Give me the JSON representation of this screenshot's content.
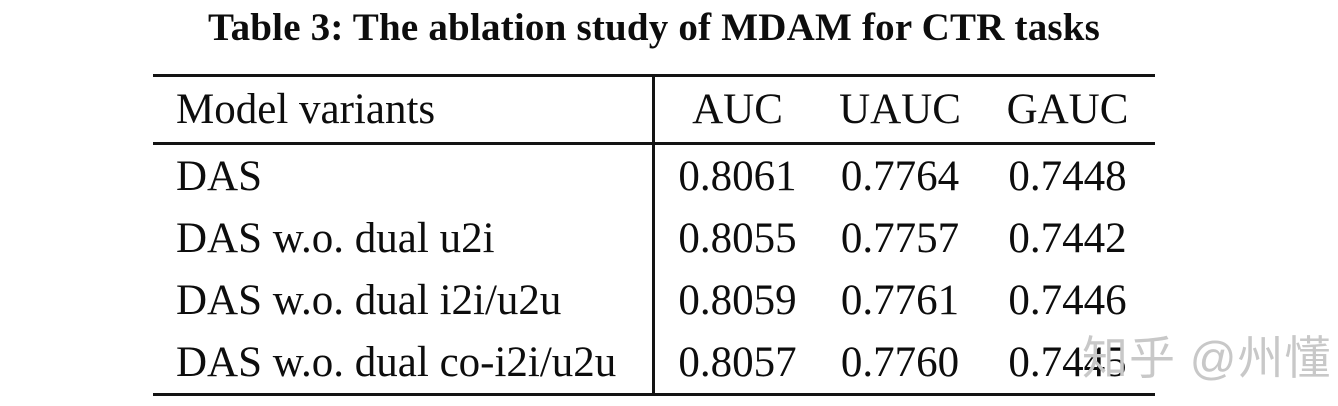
{
  "table": {
    "caption": "Table 3: The ablation study of MDAM for CTR tasks",
    "columns": [
      "Model variants",
      "AUC",
      "UAUC",
      "GAUC"
    ],
    "rows": [
      {
        "model": "DAS",
        "auc": "0.8061",
        "uauc": "0.7764",
        "gauc": "0.7448"
      },
      {
        "model": "DAS w.o. dual u2i",
        "auc": "0.8055",
        "uauc": "0.7757",
        "gauc": "0.7442"
      },
      {
        "model": "DAS w.o. dual i2i/u2u",
        "auc": "0.8059",
        "uauc": "0.7761",
        "gauc": "0.7446"
      },
      {
        "model": "DAS w.o. dual co-i2i/u2u",
        "auc": "0.8057",
        "uauc": "0.7760",
        "gauc": "0.7445"
      }
    ]
  },
  "watermark": {
    "text": "知乎 @州懂",
    "color": "#c8c8c8"
  },
  "colors": {
    "rule": "#131313",
    "text": "#0d0d0d",
    "background": "#ffffff"
  }
}
